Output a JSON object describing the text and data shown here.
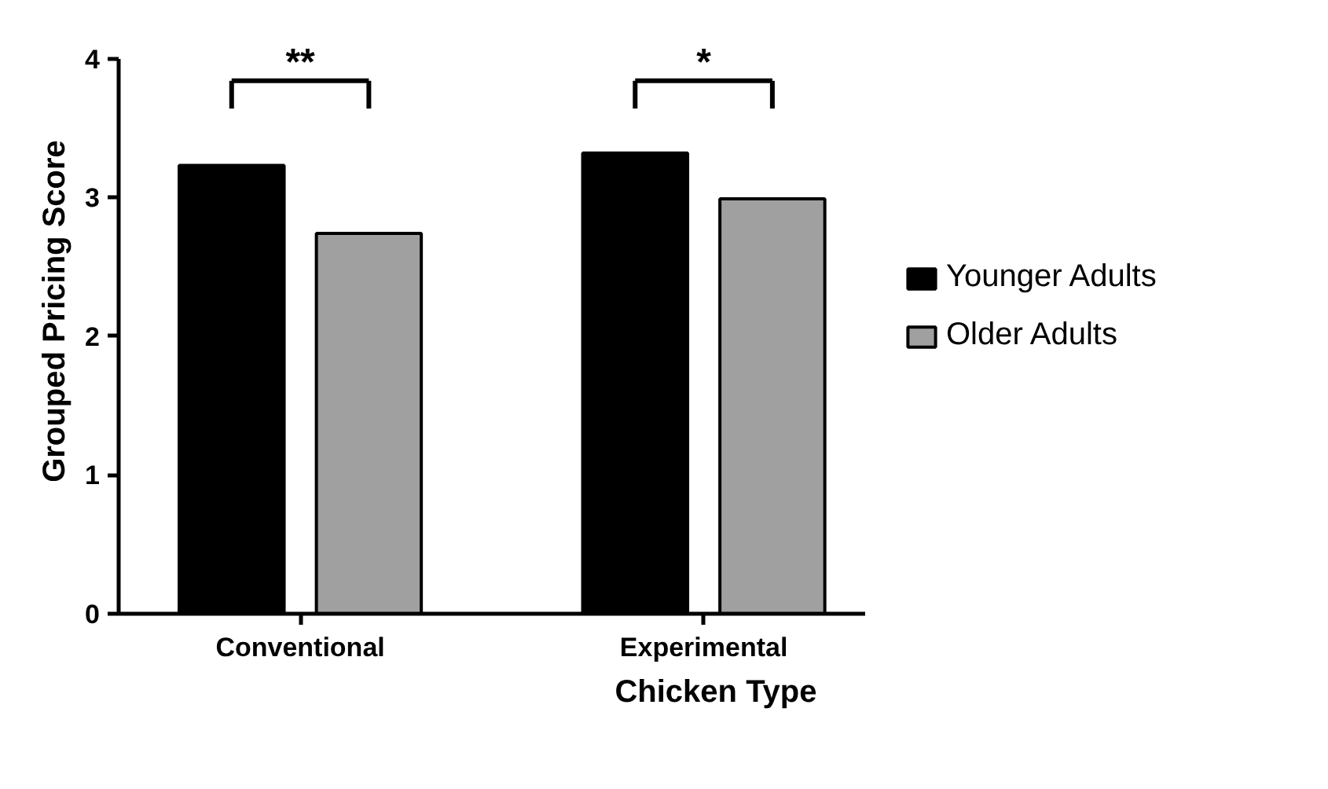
{
  "chart_data": {
    "type": "bar",
    "xlabel": "Chicken Type",
    "ylabel": "Grouped Pricing Score",
    "categories": [
      "Conventional",
      "Experimental"
    ],
    "series": [
      {
        "name": "Younger Adults",
        "color": "#000000",
        "values": [
          3.23,
          3.32
        ]
      },
      {
        "name": "Older Adults",
        "color": "#a0a0a0",
        "values": [
          2.74,
          2.99
        ]
      }
    ],
    "ylim": [
      0,
      4
    ],
    "yticks": [
      0,
      1,
      2,
      3,
      4
    ],
    "grid": false,
    "legend": "right",
    "annotations": [
      "**",
      "*"
    ]
  }
}
